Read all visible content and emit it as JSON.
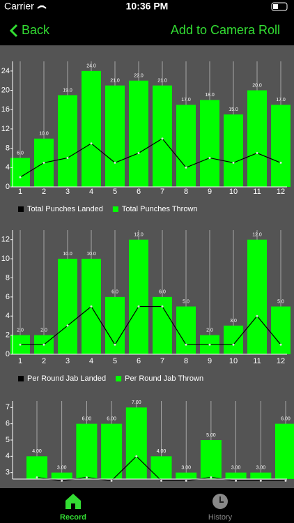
{
  "status_bar": {
    "carrier": "Carrier",
    "time": "10:36 PM"
  },
  "nav_bar": {
    "back": "Back",
    "action": "Add to Camera Roll"
  },
  "chart_data": [
    {
      "type": "bar",
      "categories": [
        "1",
        "2",
        "3",
        "4",
        "5",
        "6",
        "7",
        "8",
        "9",
        "10",
        "11",
        "12"
      ],
      "series": [
        {
          "name": "Total Punches Landed",
          "type": "line",
          "color": "#000000",
          "values": [
            2,
            5,
            6,
            9,
            5,
            7,
            10,
            4,
            6,
            5,
            7,
            5
          ]
        },
        {
          "name": "Total Punches Thrown",
          "type": "bar",
          "color": "#00ff00",
          "values": [
            6,
            10,
            19,
            24,
            21,
            22,
            21,
            17,
            18,
            15,
            20,
            17
          ],
          "value_labels": [
            "6.0",
            "10.0",
            "19.0",
            "24.0",
            "21.0",
            "22.0",
            "21.0",
            "17.0",
            "18.0",
            "15.0",
            "20.0",
            "17.0"
          ]
        }
      ],
      "ylim": [
        0,
        26
      ],
      "yticks": [
        0,
        4,
        8,
        12,
        16,
        20,
        24
      ],
      "legend": "bottom-left"
    },
    {
      "type": "bar",
      "categories": [
        "1",
        "2",
        "3",
        "4",
        "5",
        "6",
        "7",
        "8",
        "9",
        "10",
        "11",
        "12"
      ],
      "series": [
        {
          "name": "Per Round Jab Landed",
          "type": "line",
          "color": "#000000",
          "values": [
            1,
            1,
            3,
            5,
            1,
            5,
            5,
            1,
            1,
            1,
            4,
            1
          ]
        },
        {
          "name": "Per Round Jab Thrown",
          "type": "bar",
          "color": "#00ff00",
          "values": [
            2,
            2,
            10,
            10,
            6,
            12,
            6,
            5,
            2,
            3,
            12,
            5
          ],
          "value_labels": [
            "2.0",
            "2.0",
            "10.0",
            "10.0",
            "6.0",
            "12.0",
            "6.0",
            "5.0",
            "2.0",
            "3.0",
            "12.0",
            "5.0"
          ]
        }
      ],
      "ylim": [
        0,
        13
      ],
      "yticks": [
        0,
        2,
        4,
        6,
        8,
        10,
        12
      ],
      "legend": "bottom-left"
    },
    {
      "type": "bar",
      "series": [
        {
          "type": "line",
          "color": "#000000",
          "values": [
            2.7,
            2.5,
            2.7,
            2.5,
            4,
            2.5,
            2.5,
            2.7,
            2.5,
            2.5,
            2.5
          ]
        },
        {
          "type": "bar",
          "color": "#00ff00",
          "values": [
            4,
            3,
            6,
            6,
            7,
            4,
            3,
            5,
            3,
            3,
            6
          ],
          "value_labels": [
            "4.00",
            "3.00",
            "6.00",
            "6.00",
            "7.00",
            "4.00",
            "3.00",
            "5.00",
            "3.00",
            "3.00",
            "6.00"
          ]
        }
      ],
      "ylim": [
        2.6,
        7.4
      ],
      "yticks": [
        3,
        4,
        5,
        6,
        7
      ]
    }
  ],
  "tab_bar": {
    "tabs": [
      "Record",
      "History"
    ]
  }
}
